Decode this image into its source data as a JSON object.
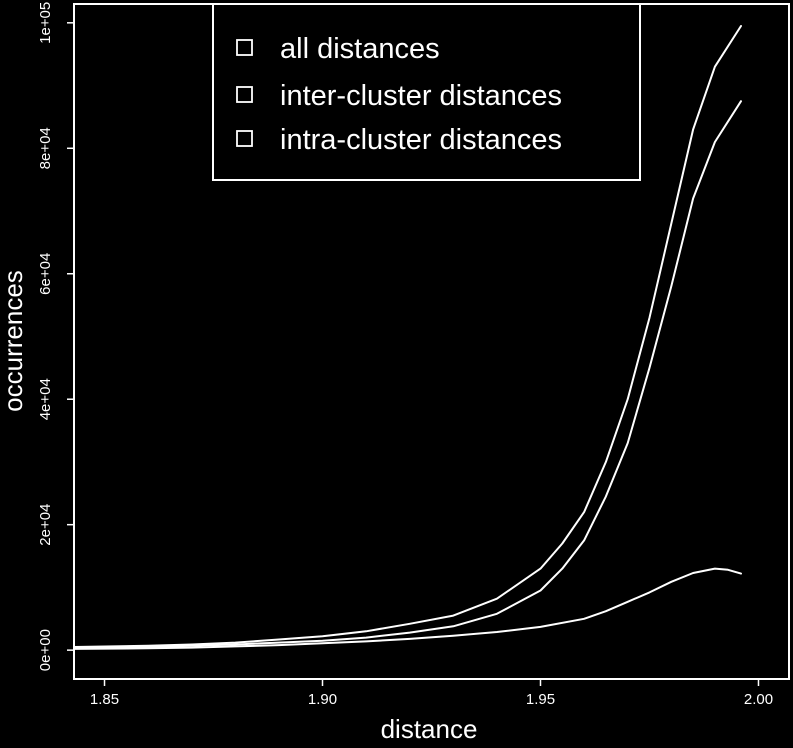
{
  "chart_data": {
    "type": "line",
    "title": "",
    "xlabel": "distance",
    "ylabel": "occurrences",
    "xlim": [
      1.843,
      2.007
    ],
    "ylim": [
      -4600,
      103000
    ],
    "x_ticks": [
      1.85,
      1.9,
      1.95,
      2.0
    ],
    "x_tick_labels": [
      "1.85",
      "1.90",
      "1.95",
      "2.00"
    ],
    "y_ticks": [
      0,
      20000,
      40000,
      60000,
      80000,
      100000
    ],
    "y_tick_labels": [
      "0e+00",
      "2e+04",
      "4e+04",
      "6e+04",
      "8e+04",
      "1e+05"
    ],
    "grid": false,
    "legend_position": "top-center",
    "colors": {
      "background": "#000000",
      "foreground": "#ffffff"
    },
    "series": [
      {
        "name": "all distances",
        "x": [
          1.843,
          1.86,
          1.87,
          1.88,
          1.89,
          1.9,
          1.91,
          1.92,
          1.93,
          1.94,
          1.95,
          1.955,
          1.96,
          1.965,
          1.97,
          1.975,
          1.98,
          1.985,
          1.99,
          1.996
        ],
        "y": [
          500,
          700,
          900,
          1200,
          1700,
          2200,
          3000,
          4200,
          5500,
          8200,
          13000,
          17000,
          22000,
          30000,
          40000,
          53000,
          68000,
          83000,
          93000,
          99500
        ]
      },
      {
        "name": "inter-cluster distances",
        "x": [
          1.843,
          1.86,
          1.87,
          1.88,
          1.89,
          1.9,
          1.91,
          1.92,
          1.93,
          1.94,
          1.95,
          1.955,
          1.96,
          1.965,
          1.97,
          1.975,
          1.98,
          1.985,
          1.99,
          1.996
        ],
        "y": [
          300,
          500,
          700,
          900,
          1200,
          1500,
          2000,
          2800,
          3800,
          5800,
          9500,
          13000,
          17500,
          24500,
          33000,
          45000,
          58000,
          72000,
          81000,
          87500
        ]
      },
      {
        "name": "intra-cluster distances",
        "x": [
          1.843,
          1.86,
          1.87,
          1.88,
          1.89,
          1.9,
          1.91,
          1.92,
          1.93,
          1.94,
          1.95,
          1.96,
          1.965,
          1.97,
          1.975,
          1.98,
          1.985,
          1.99,
          1.993,
          1.996
        ],
        "y": [
          200,
          300,
          400,
          600,
          800,
          1100,
          1400,
          1800,
          2300,
          2900,
          3700,
          5000,
          6200,
          7700,
          9200,
          10900,
          12300,
          13000,
          12800,
          12200
        ]
      }
    ]
  }
}
